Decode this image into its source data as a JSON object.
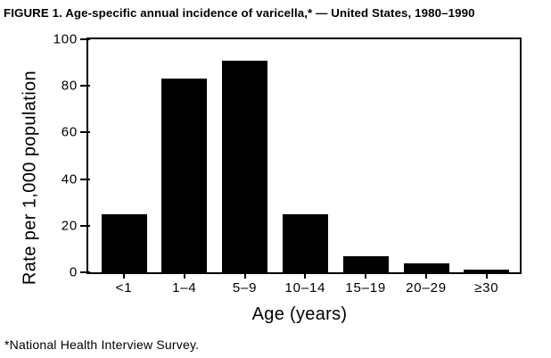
{
  "figure": {
    "title": "FIGURE 1. Age-specific annual incidence of varicella,* — United States, 1980–1990",
    "footnote": "*National Health Interview Survey."
  },
  "chart_data": {
    "type": "bar",
    "title": "FIGURE 1. Age-specific annual incidence of varicella,* — United States, 1980–1990",
    "categories": [
      "<1",
      "1–4",
      "5–9",
      "10–14",
      "15–19",
      "20–29",
      "≥30"
    ],
    "values": [
      25,
      83,
      91,
      25,
      7,
      4,
      1
    ],
    "xlabel": "Age (years)",
    "ylabel": "Rate per 1,000 population",
    "ylim": [
      0,
      100
    ],
    "yticks": [
      0,
      20,
      40,
      60,
      80,
      100
    ],
    "bar_color": "#000000",
    "axis_color": "#000000",
    "background_color": "#ffffff",
    "grid": false,
    "legend": "none",
    "footnote": "*National Health Interview Survey."
  }
}
